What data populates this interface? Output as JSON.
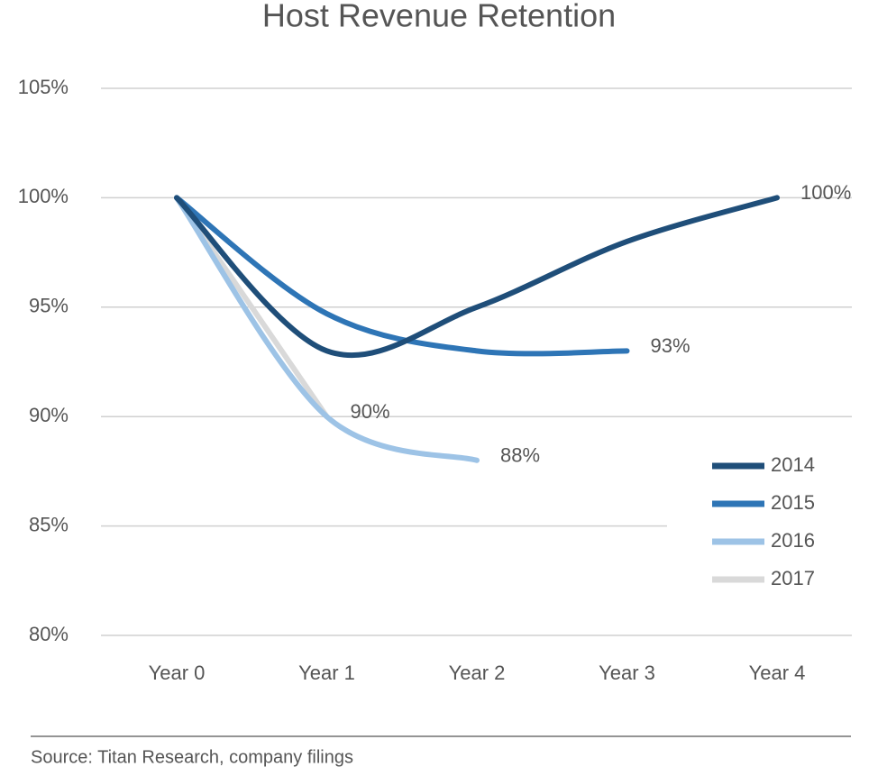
{
  "chart_data": {
    "type": "line",
    "title": "Host Revenue Retention",
    "categories": [
      "Year 0",
      "Year 1",
      "Year 2",
      "Year 3",
      "Year 4"
    ],
    "series": [
      {
        "name": "2014",
        "color": "#1f4e79",
        "values": [
          100,
          93,
          95,
          98,
          100
        ],
        "value_labels": [
          null,
          null,
          null,
          null,
          "100%"
        ]
      },
      {
        "name": "2015",
        "color": "#2e75b6",
        "values": [
          100,
          94.7,
          93,
          93,
          null
        ],
        "value_labels": [
          null,
          null,
          null,
          "93%",
          null
        ]
      },
      {
        "name": "2016",
        "color": "#9dc3e6",
        "values": [
          100,
          90,
          88,
          null,
          null
        ],
        "value_labels": [
          null,
          null,
          "88%",
          null,
          null
        ]
      },
      {
        "name": "2017",
        "color": "#d9d9d9",
        "values": [
          100,
          90,
          null,
          null,
          null
        ],
        "value_labels": [
          null,
          "90%",
          null,
          null,
          null
        ]
      }
    ],
    "ylim": [
      80,
      105
    ],
    "yticks": [
      {
        "value": 80,
        "label": "80%"
      },
      {
        "value": 85,
        "label": "85%"
      },
      {
        "value": 90,
        "label": "90%"
      },
      {
        "value": 95,
        "label": "95%"
      },
      {
        "value": 100,
        "label": "100%"
      },
      {
        "value": 105,
        "label": "105%"
      }
    ],
    "grid": true,
    "legend": "right",
    "source": "Source: Titan Research, company filings"
  }
}
